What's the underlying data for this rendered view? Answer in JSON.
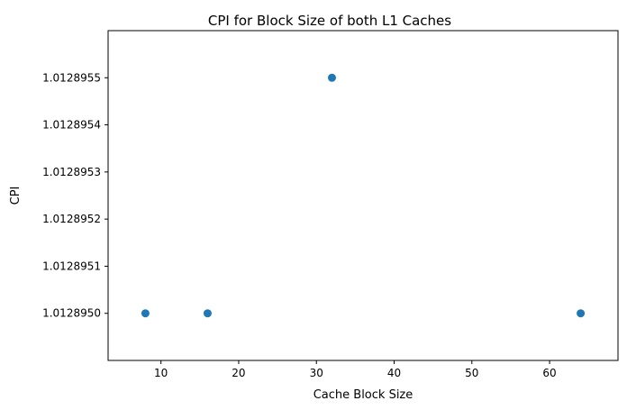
{
  "chart_data": {
    "type": "scatter",
    "title": "CPI for Block Size of both L1 Caches",
    "xlabel": "Cache Block Size",
    "ylabel": "CPI",
    "x": [
      8,
      16,
      32,
      64
    ],
    "y": [
      1.012895,
      1.012895,
      1.0128955,
      1.012895
    ],
    "xlim": [
      3.2,
      68.8
    ],
    "ylim": [
      1.0128949,
      1.0128956
    ],
    "xticks": [
      10,
      20,
      30,
      40,
      50,
      60
    ],
    "xtick_labels": [
      "10",
      "20",
      "30",
      "40",
      "50",
      "60"
    ],
    "yticks": [
      1.012895,
      1.0128951,
      1.0128952,
      1.0128953,
      1.0128954,
      1.0128955
    ],
    "ytick_labels": [
      "1.0128950",
      "1.0128951",
      "1.0128952",
      "1.0128953",
      "1.0128954",
      "1.0128955"
    ],
    "grid": false,
    "marker_color": "#1f77b4"
  }
}
